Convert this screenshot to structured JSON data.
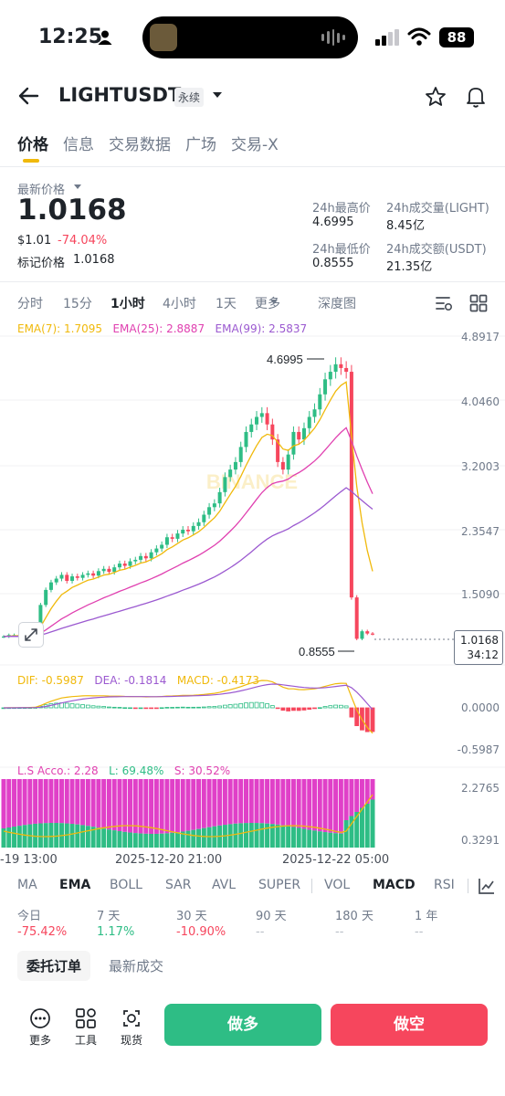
{
  "status_bar": {
    "time": "12:25",
    "battery": "88"
  },
  "header": {
    "pair": "LIGHTUSDT",
    "badge": "永续"
  },
  "tabs": [
    "价格",
    "信息",
    "交易数据",
    "广场",
    "交易-X"
  ],
  "ticker": {
    "last_price_label": "最新价格",
    "last_price": "1.0168",
    "usd_price": "$1.01",
    "change": "-74.04%",
    "mark_price_label": "标记价格",
    "mark_price": "1.0168",
    "high_label": "24h最高价",
    "high": "4.6995",
    "vol_label": "24h成交量(LIGHT)",
    "vol": "8.45亿",
    "low_label": "24h最低价",
    "low": "0.8555",
    "turnover_label": "24h成交额(USDT)",
    "turnover": "21.35亿"
  },
  "intervals": [
    "分时",
    "15分",
    "1小时",
    "4小时",
    "1天",
    "更多",
    "深度图"
  ],
  "ema_legend": {
    "ema7": "EMA(7): 1.7095",
    "ema25": "EMA(25): 2.8887",
    "ema99": "EMA(99): 2.5837"
  },
  "colors": {
    "ema7": "#f0b90b",
    "ema25": "#e040b0",
    "ema99": "#9b59d0",
    "up": "#2ebd85",
    "down": "#f6465d"
  },
  "price_axis": [
    "4.8917",
    "4.0460",
    "3.2003",
    "2.3547",
    "1.5090"
  ],
  "current_price_tag": {
    "price": "1.0168",
    "countdown": "34:12"
  },
  "high_marker": "4.6995",
  "low_marker": "0.8555",
  "watermark": "BINANCE",
  "macd_legend": {
    "dif": "DIF: -0.5987",
    "dea": "DEA: -0.1814",
    "macd": "MACD: -0.4173"
  },
  "macd_axis": [
    "0.0000",
    "-0.5987"
  ],
  "ls_legend": {
    "label": "L.S Acco.: 2.28",
    "l": "L: 69.48%",
    "s": "S: 30.52%"
  },
  "ls_axis": [
    "2.2765",
    "0.3291"
  ],
  "time_axis": [
    "-19 13:00",
    "2025-12-20 21:00",
    "2025-12-22 05:00"
  ],
  "indicators": [
    "MA",
    "EMA",
    "BOLL",
    "SAR",
    "AVL",
    "SUPER",
    "VOL",
    "MACD",
    "RSI"
  ],
  "performance": [
    {
      "label": "今日",
      "value": "-75.42%",
      "tone": "red"
    },
    {
      "label": "7 天",
      "value": "1.17%",
      "tone": "green"
    },
    {
      "label": "30 天",
      "value": "-10.90%",
      "tone": "red"
    },
    {
      "label": "90 天",
      "value": "--",
      "tone": "gray"
    },
    {
      "label": "180 天",
      "value": "--",
      "tone": "gray"
    },
    {
      "label": "1 年",
      "value": "--",
      "tone": "gray"
    }
  ],
  "order_tabs": [
    "委托订单",
    "最新成交"
  ],
  "bottom": {
    "more": "更多",
    "tools": "工具",
    "spot": "现货",
    "long": "做多",
    "short": "做空"
  },
  "chart_data": {
    "type": "candlestick",
    "ylim": [
      0.8555,
      4.8917
    ],
    "series": [
      {
        "name": "EMA(7)",
        "last": 1.7095
      },
      {
        "name": "EMA(25)",
        "last": 2.8887
      },
      {
        "name": "EMA(99)",
        "last": 2.5837
      }
    ],
    "close_approx": [
      0.98,
      1.0,
      1.0,
      1.0,
      1.0,
      1.02,
      1.05,
      1.4,
      1.6,
      1.7,
      1.75,
      1.8,
      1.72,
      1.78,
      1.76,
      1.8,
      1.82,
      1.79,
      1.85,
      1.88,
      1.84,
      1.9,
      1.95,
      1.92,
      1.98,
      2.0,
      2.05,
      2.02,
      2.1,
      2.15,
      2.2,
      2.3,
      2.28,
      2.35,
      2.4,
      2.38,
      2.45,
      2.5,
      2.6,
      2.7,
      2.75,
      2.9,
      3.1,
      3.2,
      3.3,
      3.5,
      3.7,
      3.8,
      3.9,
      3.95,
      3.8,
      3.6,
      3.3,
      3.2,
      3.4,
      3.7,
      3.6,
      3.75,
      3.9,
      4.0,
      4.2,
      4.4,
      4.5,
      4.6,
      4.55,
      4.5,
      1.5,
      0.95,
      1.05,
      1.02,
      1.0168
    ],
    "macd_last": {
      "dif": -0.5987,
      "dea": -0.1814,
      "macd": -0.4173
    },
    "ls_ratio_last": 2.28,
    "long_pct": 69.48,
    "short_pct": 30.52
  }
}
